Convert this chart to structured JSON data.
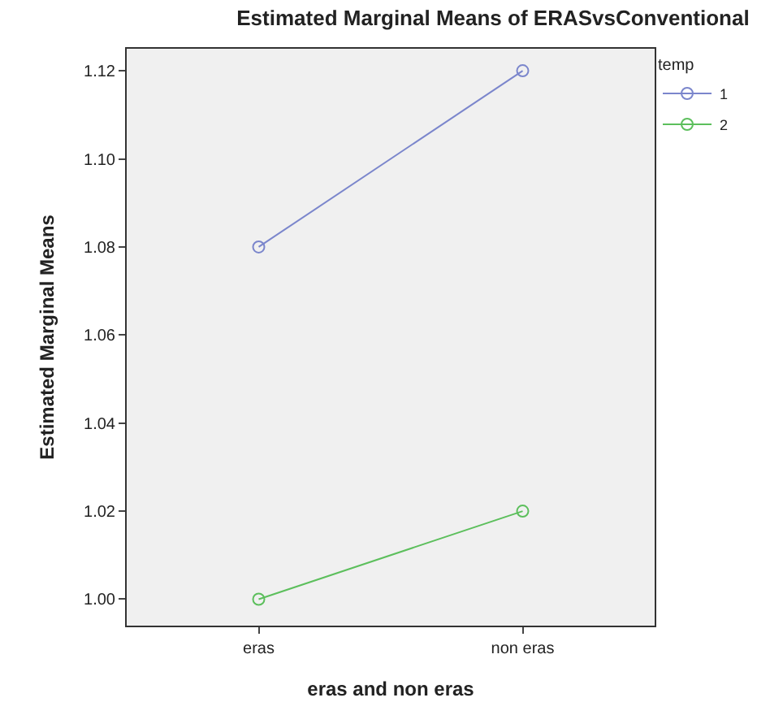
{
  "chart_data": {
    "type": "line",
    "title": "Estimated Marginal Means of ERASvsConventional",
    "xlabel": "eras and non eras",
    "ylabel": "Estimated Marginal Means",
    "legend_title": "temp",
    "categories": [
      "eras",
      "non eras"
    ],
    "series": [
      {
        "name": "1",
        "color": "#7b86cc",
        "values": [
          1.08,
          1.12
        ]
      },
      {
        "name": "2",
        "color": "#5cbf5c",
        "values": [
          1.0,
          1.02
        ]
      }
    ],
    "ylim": [
      0.994,
      1.125
    ],
    "yticks": [
      {
        "value": 1.0,
        "label": "1.00"
      },
      {
        "value": 1.02,
        "label": "1.02"
      },
      {
        "value": 1.04,
        "label": "1.04"
      },
      {
        "value": 1.06,
        "label": "1.06"
      },
      {
        "value": 1.08,
        "label": "1.08"
      },
      {
        "value": 1.1,
        "label": "1.10"
      },
      {
        "value": 1.12,
        "label": "1.12"
      }
    ],
    "grid": false,
    "legend": "top right",
    "marker": "circle",
    "line_style": "solid"
  }
}
